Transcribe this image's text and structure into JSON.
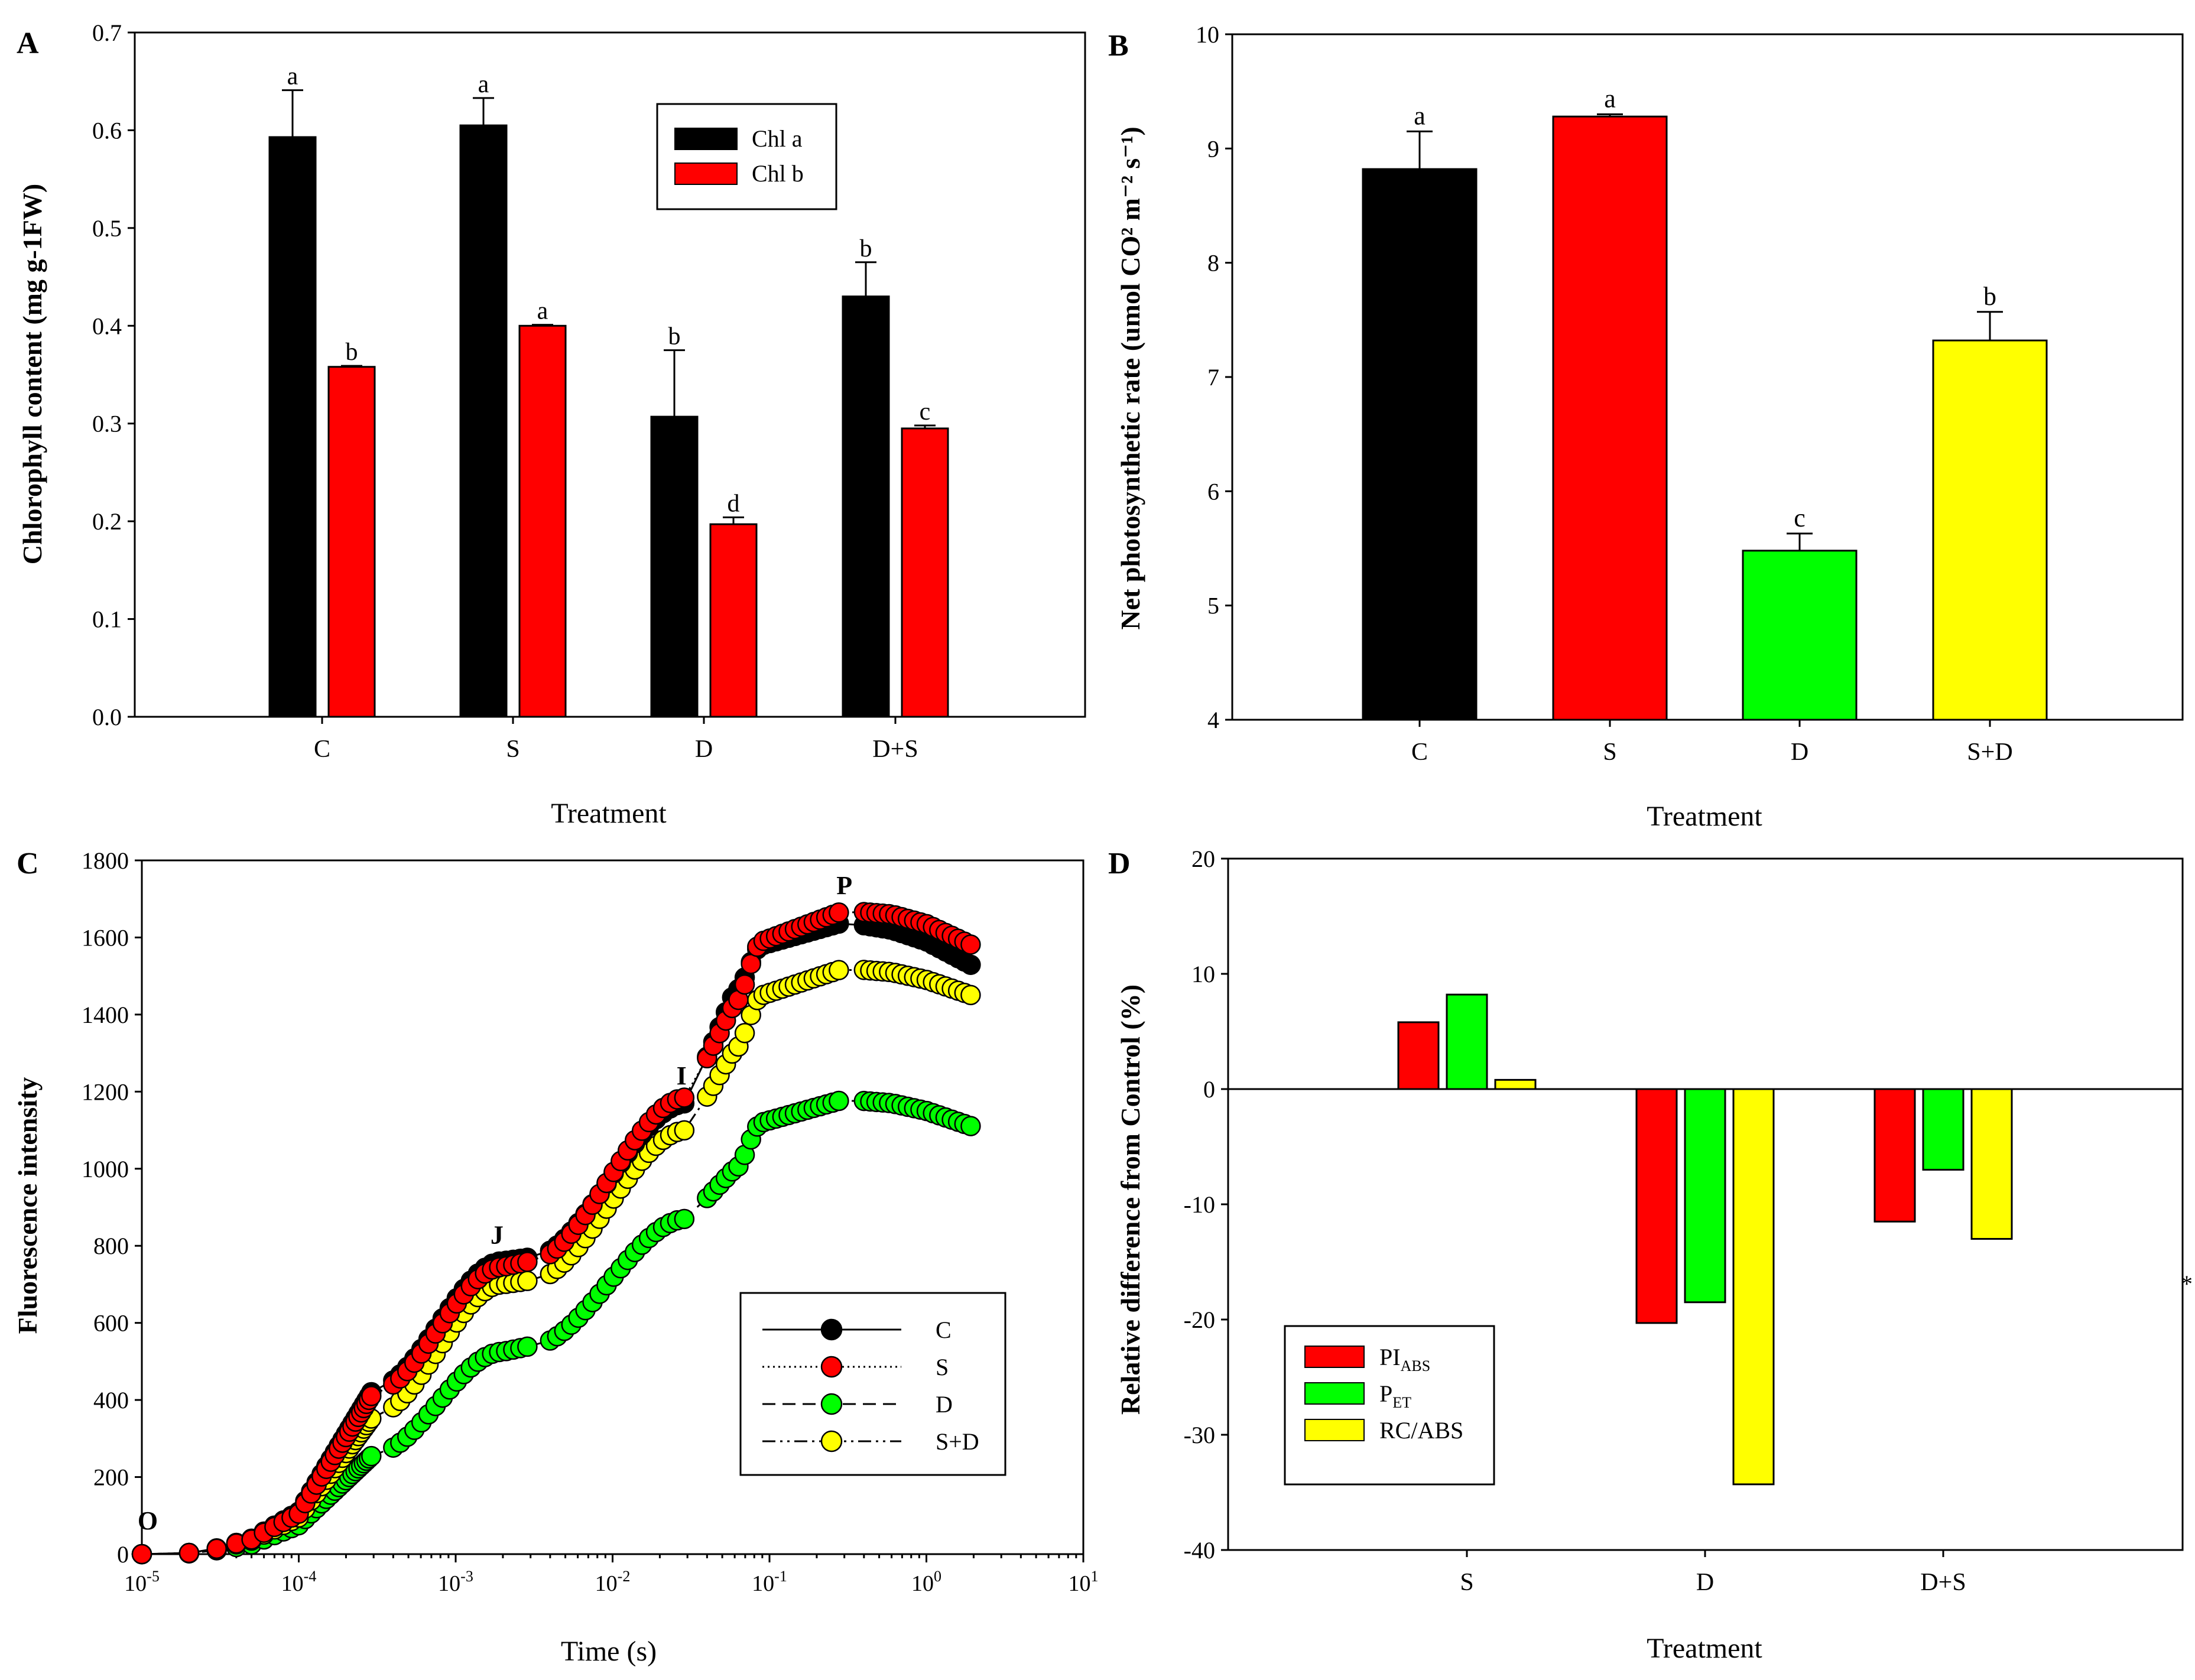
{
  "colors": {
    "black": "#000000",
    "red": "#ff0000",
    "green": "#00ff00",
    "yellow": "#ffff00"
  },
  "chart_data": [
    {
      "panel_label": "A",
      "type": "bar",
      "xlabel": "Treatment",
      "ylabel": "Chlorophyll content (mg g-1FW)",
      "ylim": [
        0,
        0.7
      ],
      "yticks": [
        "0.0",
        "0.1",
        "0.2",
        "0.3",
        "0.4",
        "0.5",
        "0.6",
        "0.7"
      ],
      "categories": [
        "C",
        "S",
        "D",
        "D+S"
      ],
      "series": [
        {
          "name": "Chl a",
          "color": "#000000",
          "values": [
            0.593,
            0.605,
            0.307,
            0.43
          ],
          "errors": [
            0.048,
            0.028,
            0.068,
            0.035
          ],
          "letters": [
            "a",
            "a",
            "b",
            "b"
          ]
        },
        {
          "name": "Chl b",
          "color": "#ff0000",
          "values": [
            0.358,
            0.4,
            0.197,
            0.295
          ],
          "errors": [
            0.001,
            0.001,
            0.007,
            0.003
          ],
          "letters": [
            "b",
            "a",
            "d",
            "c"
          ]
        }
      ],
      "legend": [
        "Chl a",
        "Chl b"
      ],
      "legend_position": "top-right"
    },
    {
      "panel_label": "B",
      "type": "bar",
      "xlabel": "Treatment",
      "ylabel": "Net photosynthetic rate (umol CO² m⁻² s⁻¹)",
      "ylim": [
        4,
        10
      ],
      "yticks": [
        "4",
        "5",
        "6",
        "7",
        "8",
        "9",
        "10"
      ],
      "categories": [
        "C",
        "S",
        "D",
        "S+D"
      ],
      "values": [
        8.82,
        9.28,
        5.48,
        7.32
      ],
      "errors": [
        0.33,
        0.02,
        0.15,
        0.25
      ],
      "letters": [
        "a",
        "a",
        "c",
        "b"
      ],
      "colors": [
        "#000000",
        "#ff0000",
        "#00ff00",
        "#ffff00"
      ]
    },
    {
      "panel_label": "C",
      "type": "scatter",
      "xlabel": "Time (s)",
      "ylabel": "Fluorescence intensity",
      "xscale": "log",
      "xlim": [
        1e-05,
        10
      ],
      "ylim": [
        0,
        1800
      ],
      "yticks": [
        "0",
        "200",
        "400",
        "600",
        "800",
        "1000",
        "1200",
        "1400",
        "1600",
        "1800"
      ],
      "xtick_exponents": [
        "-5",
        "-4",
        "-3",
        "-2",
        "-1",
        "0",
        "1"
      ],
      "xtick_base": "10",
      "point_labels": [
        {
          "text": "O",
          "x": 1e-05,
          "y": 0
        },
        {
          "text": "J",
          "x": 0.002,
          "y": 760
        },
        {
          "text": "I",
          "x": 0.03,
          "y": 1185
        },
        {
          "text": "P",
          "x": 0.3,
          "y": 1670
        }
      ],
      "phase_times": [
        1e-05,
        2e-05,
        3e-05,
        5e-05,
        0.0001,
        0.0003,
        0.002,
        0.003,
        0.03,
        0.06,
        0.09,
        0.3,
        0.6,
        1,
        2
      ],
      "series": [
        {
          "name": "C",
          "line": "solid",
          "color": "#000000",
          "values": [
            0,
            3,
            15,
            40,
            110,
            430,
            760,
            770,
            1170,
            1460,
            1580,
            1640,
            1620,
            1590,
            1525
          ]
        },
        {
          "name": "S",
          "line": "dotted",
          "color": "#ff0000",
          "values": [
            0,
            3,
            14,
            38,
            105,
            420,
            745,
            760,
            1185,
            1430,
            1590,
            1670,
            1660,
            1635,
            1578
          ]
        },
        {
          "name": "D",
          "line": "dashed",
          "color": "#00ff00",
          "values": [
            0,
            2,
            10,
            25,
            75,
            260,
            525,
            540,
            870,
            1000,
            1120,
            1180,
            1170,
            1150,
            1108
          ]
        },
        {
          "name": "S+D",
          "line": "dash-dot-dot",
          "color": "#ffff00",
          "values": [
            0,
            3,
            13,
            35,
            95,
            360,
            700,
            710,
            1100,
            1310,
            1450,
            1520,
            1510,
            1490,
            1448
          ]
        }
      ],
      "legend": [
        "C",
        "S",
        "D",
        "S+D"
      ],
      "legend_position": "bottom-right"
    },
    {
      "panel_label": "D",
      "type": "bar",
      "xlabel": "Treatment",
      "ylabel": "Relative difference from Control (%)",
      "ylim": [
        -40,
        20
      ],
      "yticks": [
        "-40",
        "-30",
        "-20",
        "-10",
        "0",
        "10",
        "20"
      ],
      "categories": [
        "S",
        "D",
        "D+S"
      ],
      "series": [
        {
          "name": "PI",
          "subscript": "ABS",
          "color": "#ff0000",
          "values": [
            5.8,
            -20.3,
            -11.5
          ]
        },
        {
          "name": "P",
          "subscript": "ET",
          "color": "#00ff00",
          "values": [
            8.2,
            -18.5,
            -7.0
          ]
        },
        {
          "name": "RC/ABS",
          "subscript": "",
          "color": "#ffff00",
          "values": [
            0.8,
            -34.3,
            -13.0
          ]
        }
      ],
      "legend_position": "bottom-left",
      "stray_mark": "*"
    }
  ]
}
